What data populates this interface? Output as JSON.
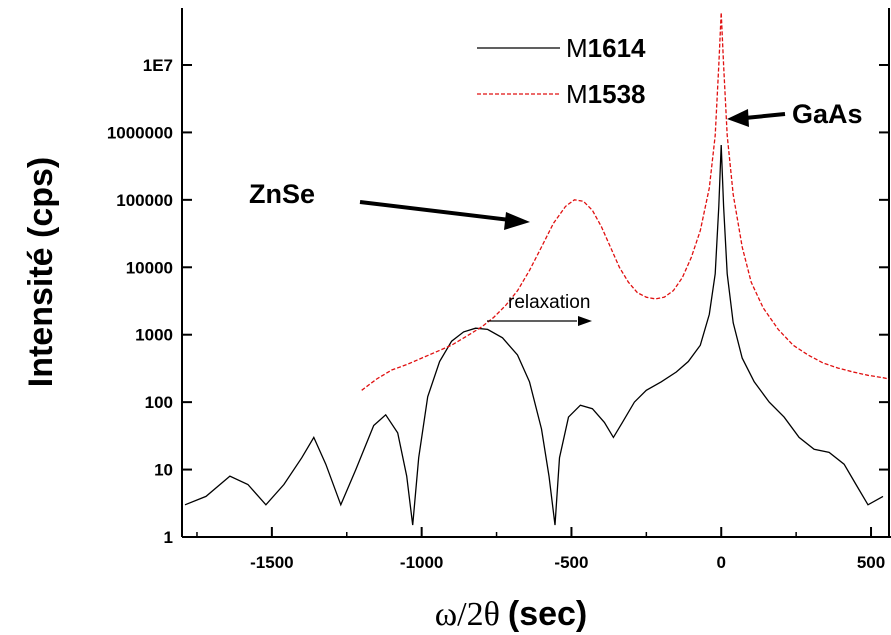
{
  "chart_data": {
    "type": "line",
    "ylabel": "Intensité (cps)",
    "xlabel_greek": "ω/2θ",
    "xlabel_unit": "(sec)",
    "y_scale": "log",
    "xlim": [
      -1800,
      560
    ],
    "ylim": [
      1,
      70000000
    ],
    "x_ticks": [
      -1500,
      -1000,
      -500,
      0,
      500
    ],
    "x_tick_labels": [
      "-1500",
      "-1000",
      "-500",
      "0",
      "500"
    ],
    "y_ticks": [
      1,
      10,
      100,
      1000,
      10000,
      100000,
      1000000,
      10000000
    ],
    "y_tick_labels": [
      "1",
      "10",
      "100",
      "1000",
      "10000",
      "100000",
      "1000000",
      "1E7"
    ],
    "grid": false,
    "legend_placement": "top-right",
    "series": [
      {
        "name_prefix": "M",
        "name_bold": "1614",
        "color": "#000000",
        "style": "solid",
        "points": [
          [
            -1790,
            3
          ],
          [
            -1720,
            4
          ],
          [
            -1640,
            8
          ],
          [
            -1580,
            6
          ],
          [
            -1520,
            3
          ],
          [
            -1460,
            6
          ],
          [
            -1400,
            15
          ],
          [
            -1360,
            30
          ],
          [
            -1320,
            12
          ],
          [
            -1270,
            3
          ],
          [
            -1220,
            10
          ],
          [
            -1160,
            45
          ],
          [
            -1120,
            65
          ],
          [
            -1080,
            35
          ],
          [
            -1050,
            8
          ],
          [
            -1030,
            1.5
          ],
          [
            -1010,
            15
          ],
          [
            -980,
            120
          ],
          [
            -940,
            400
          ],
          [
            -900,
            800
          ],
          [
            -860,
            1100
          ],
          [
            -820,
            1250
          ],
          [
            -780,
            1200
          ],
          [
            -730,
            900
          ],
          [
            -680,
            500
          ],
          [
            -640,
            200
          ],
          [
            -600,
            40
          ],
          [
            -575,
            8
          ],
          [
            -555,
            1.5
          ],
          [
            -540,
            15
          ],
          [
            -510,
            60
          ],
          [
            -470,
            90
          ],
          [
            -430,
            80
          ],
          [
            -390,
            50
          ],
          [
            -360,
            30
          ],
          [
            -330,
            50
          ],
          [
            -290,
            100
          ],
          [
            -250,
            150
          ],
          [
            -200,
            200
          ],
          [
            -150,
            280
          ],
          [
            -110,
            400
          ],
          [
            -70,
            700
          ],
          [
            -40,
            2000
          ],
          [
            -20,
            8000
          ],
          [
            -8,
            80000
          ],
          [
            0,
            650000
          ],
          [
            8,
            80000
          ],
          [
            20,
            8000
          ],
          [
            40,
            1500
          ],
          [
            70,
            450
          ],
          [
            110,
            200
          ],
          [
            160,
            100
          ],
          [
            210,
            60
          ],
          [
            260,
            30
          ],
          [
            310,
            20
          ],
          [
            360,
            18
          ],
          [
            410,
            12
          ],
          [
            450,
            6
          ],
          [
            490,
            3
          ],
          [
            540,
            4
          ]
        ]
      },
      {
        "name_prefix": "M",
        "name_bold": "1538",
        "color": "#e01010",
        "style": "dashed",
        "points": [
          [
            -1200,
            150
          ],
          [
            -1150,
            220
          ],
          [
            -1100,
            300
          ],
          [
            -1050,
            360
          ],
          [
            -1000,
            450
          ],
          [
            -950,
            560
          ],
          [
            -900,
            700
          ],
          [
            -850,
            950
          ],
          [
            -800,
            1300
          ],
          [
            -760,
            1800
          ],
          [
            -720,
            2700
          ],
          [
            -680,
            4500
          ],
          [
            -640,
            9000
          ],
          [
            -600,
            20000
          ],
          [
            -560,
            45000
          ],
          [
            -520,
            80000
          ],
          [
            -490,
            100000
          ],
          [
            -460,
            95000
          ],
          [
            -430,
            70000
          ],
          [
            -400,
            40000
          ],
          [
            -370,
            20000
          ],
          [
            -340,
            10000
          ],
          [
            -310,
            6000
          ],
          [
            -280,
            4200
          ],
          [
            -250,
            3600
          ],
          [
            -220,
            3400
          ],
          [
            -190,
            3600
          ],
          [
            -160,
            4500
          ],
          [
            -130,
            7000
          ],
          [
            -100,
            14000
          ],
          [
            -70,
            35000
          ],
          [
            -40,
            150000
          ],
          [
            -20,
            900000
          ],
          [
            -8,
            10000000
          ],
          [
            0,
            60000000
          ],
          [
            8,
            10000000
          ],
          [
            20,
            900000
          ],
          [
            40,
            120000
          ],
          [
            70,
            20000
          ],
          [
            100,
            6000
          ],
          [
            140,
            2500
          ],
          [
            190,
            1200
          ],
          [
            240,
            700
          ],
          [
            290,
            500
          ],
          [
            340,
            380
          ],
          [
            390,
            320
          ],
          [
            440,
            280
          ],
          [
            490,
            250
          ],
          [
            540,
            230
          ],
          [
            560,
            220
          ]
        ]
      }
    ],
    "annotations": {
      "znse": "ZnSe",
      "gaas": "GaAs",
      "relaxation": "relaxation"
    }
  }
}
